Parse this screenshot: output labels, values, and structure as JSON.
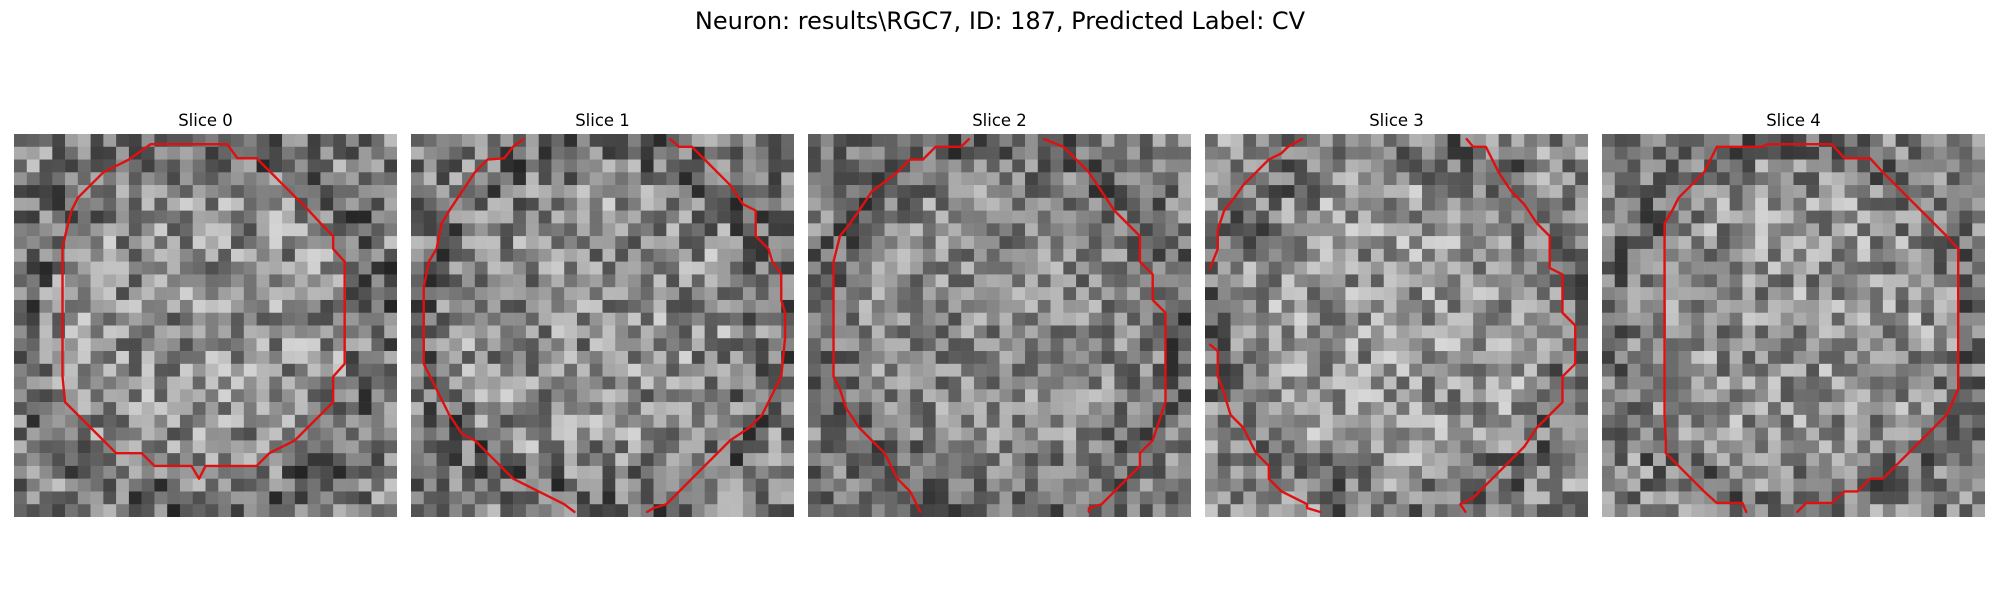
{
  "figure": {
    "title": "Neuron: results\\RGC7, ID: 187, Predicted Label: CV",
    "contour_color": "#e01010"
  },
  "panels": [
    {
      "title": "Slice 0",
      "image": {
        "grid": 30,
        "seed": 11,
        "mean": 128,
        "contrast": 70
      },
      "contours": [
        [
          [
            10.7,
            0.8
          ],
          [
            16.7,
            0.8
          ],
          [
            17.5,
            1.9
          ],
          [
            19.0,
            1.9
          ],
          [
            20.0,
            2.9
          ],
          [
            21.0,
            3.9
          ],
          [
            22.0,
            4.9
          ],
          [
            23.0,
            5.9
          ],
          [
            24.3,
            7.3
          ],
          [
            25.0,
            8.0
          ],
          [
            25.0,
            9.0
          ],
          [
            25.9,
            10.0
          ],
          [
            25.9,
            18.0
          ],
          [
            25.0,
            19.0
          ],
          [
            25.0,
            21.0
          ],
          [
            24.0,
            22.0
          ],
          [
            23.0,
            23.0
          ],
          [
            22.0,
            24.0
          ],
          [
            20.0,
            25.0
          ],
          [
            19.0,
            26.0
          ],
          [
            15.0,
            26.0
          ],
          [
            14.5,
            27.0
          ],
          [
            13.9,
            26.0
          ],
          [
            11.0,
            26.0
          ],
          [
            10.0,
            25.0
          ],
          [
            8.0,
            25.0
          ],
          [
            7.0,
            24.0
          ],
          [
            5.0,
            22.0
          ],
          [
            4.0,
            21.0
          ],
          [
            3.8,
            19.0
          ],
          [
            3.8,
            9.0
          ],
          [
            4.0,
            8.0
          ],
          [
            4.5,
            6.0
          ],
          [
            5.0,
            5.0
          ],
          [
            6.0,
            4.0
          ],
          [
            7.0,
            3.0
          ],
          [
            8.0,
            2.5
          ],
          [
            9.0,
            2.0
          ],
          [
            10.7,
            0.8
          ]
        ]
      ]
    },
    {
      "title": "Slice 1",
      "image": {
        "grid": 30,
        "seed": 23,
        "mean": 128,
        "contrast": 70
      },
      "contours": [
        [
          [
            8.8,
            0.4
          ],
          [
            8.0,
            1.0
          ],
          [
            7.3,
            1.9
          ],
          [
            6.0,
            2.0
          ],
          [
            5.0,
            3.0
          ],
          [
            4.0,
            4.5
          ],
          [
            3.0,
            6.0
          ],
          [
            2.4,
            7.0
          ],
          [
            2.0,
            9.0
          ],
          [
            1.4,
            10.0
          ],
          [
            1.0,
            12.0
          ],
          [
            1.0,
            18.0
          ],
          [
            2.0,
            20.0
          ],
          [
            2.5,
            21.0
          ],
          [
            3.0,
            22.0
          ],
          [
            4.0,
            23.5
          ],
          [
            5.0,
            24.0
          ],
          [
            6.0,
            25.0
          ],
          [
            7.0,
            26.0
          ],
          [
            8.0,
            27.0
          ],
          [
            9.0,
            27.5
          ],
          [
            10.0,
            28.0
          ],
          [
            11.0,
            28.5
          ],
          [
            12.0,
            29.0
          ],
          [
            12.8,
            29.6
          ]
        ],
        [
          [
            20.3,
            0.4
          ],
          [
            21.0,
            1.0
          ],
          [
            22.0,
            1.0
          ],
          [
            23.0,
            2.0
          ],
          [
            24.0,
            3.0
          ],
          [
            25.0,
            4.0
          ],
          [
            26.0,
            5.5
          ],
          [
            27.0,
            6.0
          ],
          [
            27.0,
            8.0
          ],
          [
            28.0,
            9.0
          ],
          [
            28.3,
            10.0
          ],
          [
            29.0,
            11.0
          ],
          [
            29.0,
            13.0
          ],
          [
            29.3,
            14.0
          ],
          [
            29.3,
            16.0
          ],
          [
            29.0,
            19.0
          ],
          [
            28.0,
            21.0
          ],
          [
            27.5,
            22.0
          ],
          [
            26.5,
            23.0
          ],
          [
            25.0,
            24.0
          ],
          [
            24.0,
            25.0
          ],
          [
            23.0,
            26.0
          ],
          [
            22.0,
            27.0
          ],
          [
            21.0,
            28.0
          ],
          [
            20.0,
            29.0
          ],
          [
            19.0,
            29.3
          ],
          [
            18.5,
            29.6
          ]
        ]
      ]
    },
    {
      "title": "Slice 2",
      "image": {
        "grid": 30,
        "seed": 37,
        "mean": 122,
        "contrast": 60
      },
      "contours": [
        [
          [
            12.6,
            0.4
          ],
          [
            12.0,
            1.0
          ],
          [
            10.0,
            1.0
          ],
          [
            9.0,
            2.0
          ],
          [
            8.0,
            2.0
          ],
          [
            7.0,
            3.0
          ],
          [
            5.0,
            4.5
          ],
          [
            4.0,
            6.0
          ],
          [
            3.3,
            7.0
          ],
          [
            2.5,
            8.0
          ],
          [
            2.0,
            10.0
          ],
          [
            2.0,
            19.0
          ],
          [
            2.5,
            20.0
          ],
          [
            3.0,
            21.5
          ],
          [
            4.0,
            23.0
          ],
          [
            5.0,
            24.0
          ],
          [
            6.0,
            25.0
          ],
          [
            7.0,
            27.0
          ],
          [
            8.0,
            28.0
          ],
          [
            8.8,
            29.6
          ]
        ],
        [
          [
            18.5,
            0.4
          ],
          [
            20.0,
            1.0
          ],
          [
            21.0,
            2.0
          ],
          [
            22.0,
            3.0
          ],
          [
            23.0,
            4.5
          ],
          [
            24.0,
            6.0
          ],
          [
            25.0,
            7.0
          ],
          [
            26.0,
            8.0
          ],
          [
            26.0,
            10.0
          ],
          [
            27.0,
            11.0
          ],
          [
            27.0,
            13.0
          ],
          [
            28.0,
            14.0
          ],
          [
            28.0,
            21.0
          ],
          [
            27.0,
            24.0
          ],
          [
            26.0,
            25.0
          ],
          [
            26.0,
            26.0
          ],
          [
            25.0,
            27.0
          ],
          [
            24.0,
            28.0
          ],
          [
            23.0,
            29.0
          ],
          [
            22.0,
            29.3
          ],
          [
            22.0,
            29.6
          ]
        ]
      ]
    },
    {
      "title": "Slice 3",
      "image": {
        "grid": 30,
        "seed": 41,
        "mean": 136,
        "contrast": 66
      },
      "contours": [
        [
          [
            7.6,
            0.4
          ],
          [
            6.5,
            1.0
          ],
          [
            6.0,
            1.5
          ],
          [
            5.0,
            2.0
          ],
          [
            4.0,
            3.0
          ],
          [
            3.0,
            4.0
          ],
          [
            2.3,
            5.0
          ],
          [
            1.5,
            6.0
          ],
          [
            1.0,
            7.5
          ],
          [
            1.0,
            9.0
          ],
          [
            0.4,
            10.5
          ]
        ],
        [
          [
            0.4,
            16.5
          ],
          [
            1.0,
            17.0
          ],
          [
            1.0,
            19.0
          ],
          [
            1.4,
            20.0
          ],
          [
            2.0,
            22.0
          ],
          [
            3.0,
            23.0
          ],
          [
            4.0,
            25.0
          ],
          [
            5.0,
            26.0
          ],
          [
            5.0,
            27.0
          ],
          [
            6.0,
            28.0
          ],
          [
            7.0,
            28.5
          ],
          [
            8.0,
            29.0
          ],
          [
            8.0,
            29.3
          ],
          [
            9.0,
            29.6
          ]
        ],
        [
          [
            20.5,
            0.4
          ],
          [
            21.0,
            1.0
          ],
          [
            22.0,
            1.0
          ],
          [
            22.5,
            2.0
          ],
          [
            23.0,
            3.0
          ],
          [
            24.0,
            4.5
          ],
          [
            25.0,
            5.5
          ],
          [
            26.0,
            7.0
          ],
          [
            27.0,
            8.0
          ],
          [
            27.0,
            10.5
          ],
          [
            28.0,
            11.0
          ],
          [
            28.0,
            14.0
          ],
          [
            29.0,
            15.0
          ],
          [
            29.0,
            18.0
          ],
          [
            28.0,
            19.0
          ],
          [
            28.0,
            21.0
          ],
          [
            27.0,
            22.0
          ],
          [
            26.0,
            23.0
          ],
          [
            25.0,
            24.5
          ],
          [
            24.0,
            25.5
          ],
          [
            23.0,
            26.5
          ],
          [
            22.0,
            27.5
          ],
          [
            21.0,
            28.5
          ],
          [
            20.0,
            29.0
          ],
          [
            20.4,
            29.6
          ]
        ]
      ]
    },
    {
      "title": "Slice 4",
      "image": {
        "grid": 30,
        "seed": 53,
        "mean": 132,
        "contrast": 66
      },
      "contours": [
        [
          [
            9.0,
            1.0
          ],
          [
            12.5,
            1.0
          ],
          [
            13.0,
            0.8
          ],
          [
            18.0,
            0.8
          ],
          [
            19.0,
            1.9
          ],
          [
            21.0,
            1.9
          ],
          [
            22.0,
            3.0
          ],
          [
            23.0,
            4.0
          ],
          [
            24.0,
            5.0
          ],
          [
            25.0,
            6.0
          ],
          [
            26.0,
            7.0
          ],
          [
            27.0,
            8.0
          ],
          [
            27.9,
            9.0
          ],
          [
            27.9,
            20.0
          ],
          [
            27.0,
            22.0
          ],
          [
            26.0,
            23.0
          ],
          [
            25.0,
            24.0
          ],
          [
            24.0,
            25.0
          ],
          [
            23.0,
            26.0
          ],
          [
            22.0,
            27.0
          ],
          [
            21.0,
            27.0
          ],
          [
            20.0,
            28.0
          ],
          [
            19.0,
            28.0
          ],
          [
            18.0,
            28.9
          ],
          [
            16.0,
            28.9
          ],
          [
            15.3,
            29.6
          ]
        ],
        [
          [
            11.3,
            29.6
          ],
          [
            11.0,
            28.9
          ],
          [
            9.0,
            28.9
          ],
          [
            8.0,
            28.0
          ],
          [
            7.0,
            27.0
          ],
          [
            6.0,
            26.0
          ],
          [
            5.0,
            25.0
          ],
          [
            5.0,
            24.0
          ],
          [
            4.9,
            22.0
          ],
          [
            4.9,
            7.0
          ],
          [
            5.5,
            6.0
          ],
          [
            6.0,
            5.0
          ],
          [
            7.0,
            4.0
          ],
          [
            8.0,
            3.0
          ],
          [
            9.0,
            1.0
          ]
        ]
      ]
    }
  ]
}
